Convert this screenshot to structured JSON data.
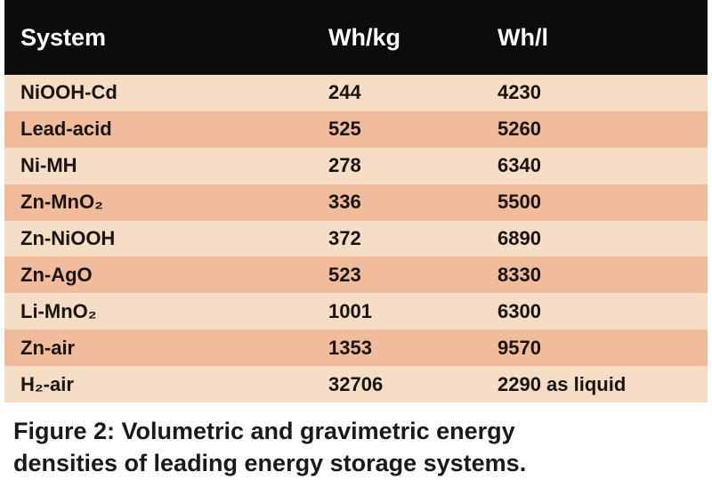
{
  "table": {
    "headers": [
      "System",
      "Wh/kg",
      "Wh/l"
    ],
    "rows": [
      [
        "NiOOH-Cd",
        "244",
        "4230"
      ],
      [
        "Lead-acid",
        "525",
        "5260"
      ],
      [
        "Ni-MH",
        "278",
        "6340"
      ],
      [
        "Zn-MnO₂",
        "336",
        "5500"
      ],
      [
        "Zn-NiOOH",
        "372",
        "6890"
      ],
      [
        "Zn-AgO",
        "523",
        "8330"
      ],
      [
        "Li-MnO₂",
        "1001",
        "6300"
      ],
      [
        "Zn-air",
        "1353",
        "9570"
      ],
      [
        "H₂-air",
        "32706",
        "2290 as liquid"
      ]
    ]
  },
  "caption": "Figure 2: Volumetric and gravimetric energy\ndensities of leading energy storage systems.",
  "colors": {
    "header_bg": "#0d0b0c",
    "row_light": "#f6ddc6",
    "row_dark": "#f1bc9c"
  }
}
